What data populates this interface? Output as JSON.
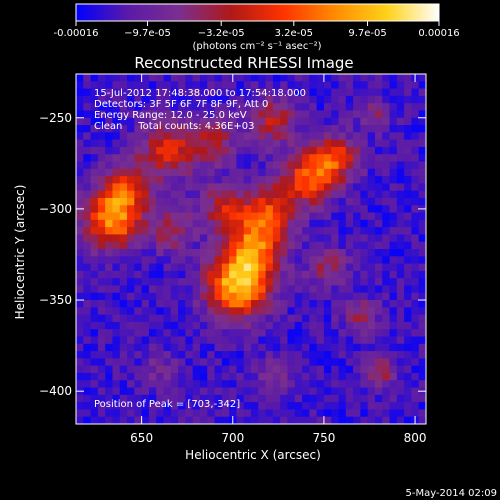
{
  "chart_data": {
    "type": "heatmap",
    "title": "Reconstructed RHESSI Image",
    "colorbar": {
      "ticks": [
        "-0.00016",
        "−9.7e-05",
        "−3.2e-05",
        "3.2e-05",
        "9.7e-05",
        "0.00016"
      ],
      "tick_values": [
        -0.00016,
        -9.7e-05,
        -3.2e-05,
        3.2e-05,
        9.7e-05,
        0.00016
      ],
      "range": [
        -0.00016,
        0.00016
      ],
      "unit_label": "(photons cm⁻² s⁻¹ asec⁻²)",
      "colors": [
        "#0000ff",
        "#5a1aa8",
        "#7a2f8f",
        "#b01818",
        "#ff3300",
        "#ff8c00",
        "#ffd21a",
        "#ffffff"
      ]
    },
    "info_lines": [
      "15-Jul-2012 17:48:38.000 to 17:54:18.000",
      "Detectors: 3F 5F 6F 7F 8F 9F, Att 0",
      "Energy Range: 12.0 - 25.0 keV",
      "Clean     Total counts: 4.36E+03"
    ],
    "peak_label": "Position of Peak = [703,-342]",
    "peak": {
      "x": 703,
      "y": -342
    },
    "xlabel": "Heliocentric X (arcsec)",
    "ylabel": "Heliocentric Y (arcsec)",
    "xlim": [
      614,
      806
    ],
    "ylim": [
      -418,
      -226
    ],
    "xticks": [
      650,
      700,
      750,
      800
    ],
    "xtick_labels": [
      "650",
      "700",
      "750",
      "800"
    ],
    "yticks": [
      -400,
      -350,
      -300,
      -250
    ],
    "ytick_labels": [
      "−400",
      "−350",
      "−300",
      "−250"
    ],
    "blobs": [
      {
        "x": 703,
        "y": -342,
        "sigma": 12,
        "amp": 1.0
      },
      {
        "x": 712,
        "y": -320,
        "sigma": 11,
        "amp": 0.7
      },
      {
        "x": 720,
        "y": -300,
        "sigma": 10,
        "amp": 0.55
      },
      {
        "x": 742,
        "y": -283,
        "sigma": 10,
        "amp": 0.7
      },
      {
        "x": 757,
        "y": -272,
        "sigma": 9,
        "amp": 0.55
      },
      {
        "x": 634,
        "y": -306,
        "sigma": 11,
        "amp": 0.85
      },
      {
        "x": 642,
        "y": -288,
        "sigma": 9,
        "amp": 0.55
      },
      {
        "x": 664,
        "y": -268,
        "sigma": 11,
        "amp": 0.55
      },
      {
        "x": 690,
        "y": -264,
        "sigma": 9,
        "amp": 0.4
      },
      {
        "x": 722,
        "y": -252,
        "sigma": 9,
        "amp": 0.45
      },
      {
        "x": 666,
        "y": -312,
        "sigma": 8,
        "amp": 0.4
      },
      {
        "x": 694,
        "y": -300,
        "sigma": 9,
        "amp": 0.45
      },
      {
        "x": 752,
        "y": -332,
        "sigma": 8,
        "amp": 0.35
      },
      {
        "x": 770,
        "y": -358,
        "sigma": 7,
        "amp": 0.35
      },
      {
        "x": 782,
        "y": -390,
        "sigma": 6,
        "amp": 0.4
      },
      {
        "x": 660,
        "y": -388,
        "sigma": 7,
        "amp": 0.2
      },
      {
        "x": 722,
        "y": -392,
        "sigma": 7,
        "amp": 0.25
      },
      {
        "x": 778,
        "y": -248,
        "sigma": 6,
        "amp": 0.3
      }
    ],
    "background_level": -0.32,
    "grid": false
  },
  "footer_date": "5-May-2014 02:09"
}
